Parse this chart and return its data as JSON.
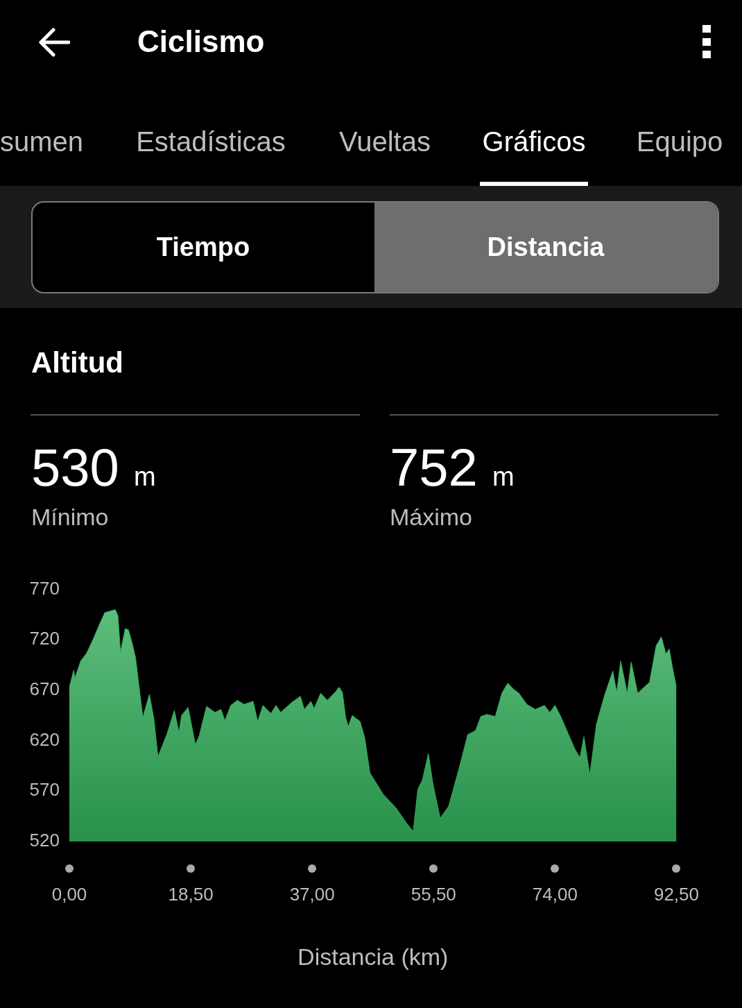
{
  "chart_data": {
    "type": "area",
    "title": "Altitud",
    "xlabel": "Distancia (km)",
    "annotations": [
      "Ciclismo",
      "sumen",
      "Estadísticas",
      "Vueltas",
      "Gráficos",
      "Equipo",
      "Tiempo",
      "Distancia",
      "530 m",
      "Mínimo",
      "752 m",
      "Máximo"
    ],
    "x": [
      0,
      0.67,
      0.83,
      1.73,
      2.65,
      3.65,
      4.5,
      5.4,
      7.0,
      7.4,
      7.8,
      8.5,
      9.0,
      9.6,
      10.1,
      10.6,
      11.2,
      12.2,
      12.9,
      13.5,
      14.9,
      16.0,
      16.7,
      17.1,
      18.1,
      19.2,
      19.8,
      20.9,
      22.2,
      23.1,
      23.7,
      24.6,
      25.6,
      26.6,
      28.0,
      28.7,
      29.5,
      30.7,
      31.5,
      32.2,
      33.9,
      35.2,
      35.8,
      36.8,
      37.3,
      38.3,
      39.3,
      40.5,
      41.1,
      41.6,
      42.1,
      42.5,
      43.1,
      44.3,
      45.0,
      45.8,
      47.8,
      49.8,
      51.4,
      52.4,
      53.1,
      53.8,
      54.7,
      55.4,
      56.5,
      57.8,
      59.4,
      60.7,
      61.9,
      62.7,
      63.6,
      64.9,
      65.9,
      66.8,
      67.7,
      68.5,
      69.7,
      71.0,
      72.4,
      73.2,
      74.0,
      74.8,
      76.0,
      77.0,
      77.8,
      78.4,
      79.3,
      80.3,
      81.5,
      82.8,
      83.4,
      84.0,
      85.0,
      85.6,
      86.6,
      88.4,
      89.4,
      90.2,
      90.9,
      91.4,
      92.0,
      92.5
    ],
    "values": [
      673,
      690,
      682,
      699,
      707,
      721,
      734,
      747,
      750,
      744,
      708,
      731,
      730,
      716,
      702,
      675,
      643,
      666,
      641,
      604,
      627,
      650,
      628,
      645,
      653,
      616,
      625,
      654,
      648,
      651,
      640,
      655,
      660,
      656,
      659,
      639,
      655,
      647,
      655,
      648,
      658,
      664,
      651,
      659,
      652,
      667,
      660,
      668,
      673,
      668,
      643,
      634,
      645,
      639,
      623,
      588,
      567,
      553,
      538,
      530,
      572,
      581,
      607,
      577,
      543,
      555,
      593,
      626,
      630,
      644,
      646,
      644,
      667,
      677,
      671,
      667,
      656,
      651,
      655,
      648,
      655,
      645,
      627,
      612,
      603,
      624,
      586,
      636,
      664,
      689,
      668,
      699,
      667,
      698,
      667,
      678,
      714,
      723,
      706,
      711,
      689,
      673
    ],
    "color": "#2eab57",
    "marker": "none",
    "grid": false,
    "legend": false,
    "xlim": [
      0,
      92.5
    ],
    "xticks": [
      {
        "value": 0,
        "label": "0,00"
      },
      {
        "value": 18.5,
        "label": "18,50"
      },
      {
        "value": 37,
        "label": "37,00"
      },
      {
        "value": 55.5,
        "label": "55,50"
      },
      {
        "value": 74,
        "label": "74,00"
      },
      {
        "value": 92.5,
        "label": "92,50"
      }
    ],
    "ylim": [
      520,
      770
    ],
    "yticks": [
      520,
      570,
      620,
      670,
      720,
      770
    ]
  }
}
